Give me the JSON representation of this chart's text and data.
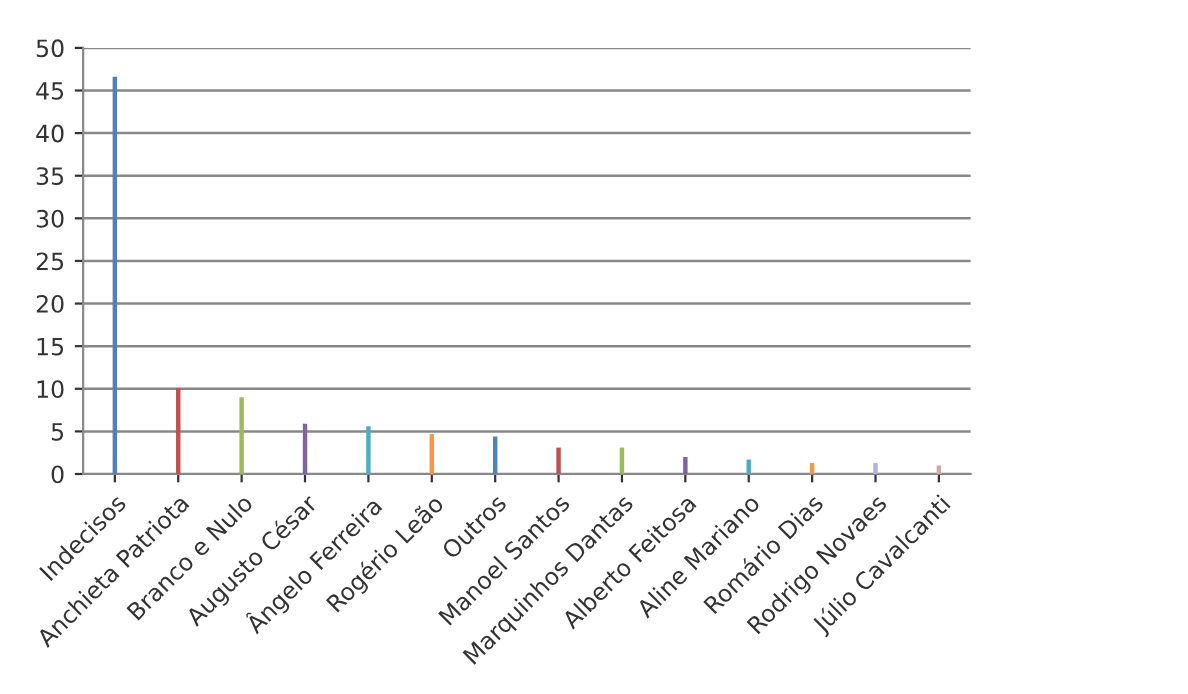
{
  "chart_data": {
    "type": "bar",
    "categories": [
      "Indecisos",
      "Anchieta Patriota",
      "Branco e Nulo",
      "Augusto César",
      "Ângelo Ferreira",
      "Rogério Leão",
      "Outros",
      "Manoel Santos",
      "Marquinhos Dantas",
      "Alberto Feitosa",
      "Aline Mariano",
      "Romário Dias",
      "Rodrigo Novaes",
      "Júlio Cavalcanti"
    ],
    "values": [
      46.6,
      10.1,
      9.0,
      5.9,
      5.6,
      4.7,
      4.4,
      3.1,
      3.1,
      2.0,
      1.7,
      1.3,
      1.3,
      1.0
    ],
    "colors": [
      "#4f81bd",
      "#c0504d",
      "#9bbb59",
      "#8064a2",
      "#4bacc6",
      "#f79646",
      "#4f81bd",
      "#c0504d",
      "#9bbb59",
      "#8064a2",
      "#4bacc6",
      "#f79646",
      "#a9b8d6",
      "#cfa9a9"
    ],
    "ylim": [
      0,
      50
    ],
    "yticks": [
      0,
      5,
      10,
      15,
      20,
      25,
      30,
      35,
      40,
      45,
      50
    ],
    "grid": "y",
    "legend": false
  }
}
